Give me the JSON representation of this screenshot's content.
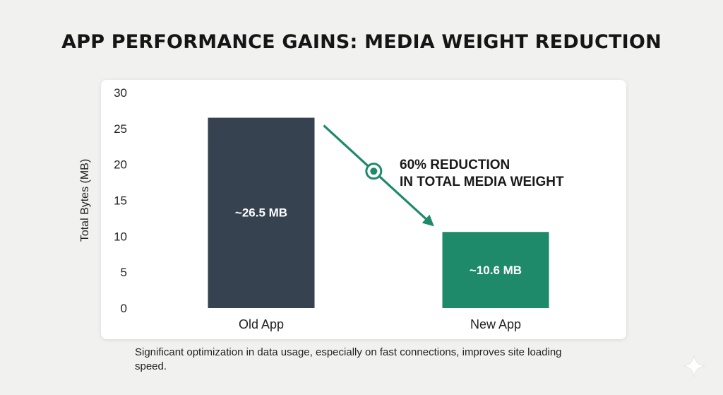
{
  "chart_data": {
    "type": "bar",
    "title": "APP PERFORMANCE GAINS: MEDIA WEIGHT REDUCTION",
    "categories": [
      "Old App",
      "New App"
    ],
    "values": [
      26.5,
      10.6
    ],
    "data_labels": [
      "~26.5 MB",
      "~10.6 MB"
    ],
    "bar_colors": [
      "#374250",
      "#1e8a6a"
    ],
    "ylabel": "Total Bytes (MB)",
    "xlabel": "",
    "ylim": [
      0,
      30
    ],
    "yticks": [
      0,
      5,
      10,
      15,
      20,
      25,
      30
    ],
    "grid": false,
    "annotation": {
      "lines": [
        "60% REDUCTION",
        "IN TOTAL MEDIA WEIGHT"
      ],
      "color": "#1e8a6a",
      "from": "Old App",
      "to": "New App"
    }
  },
  "caption": "Significant optimization in data usage, especially on fast connections, improves site loading speed.",
  "icons": {
    "corner": "sparkle-icon"
  }
}
